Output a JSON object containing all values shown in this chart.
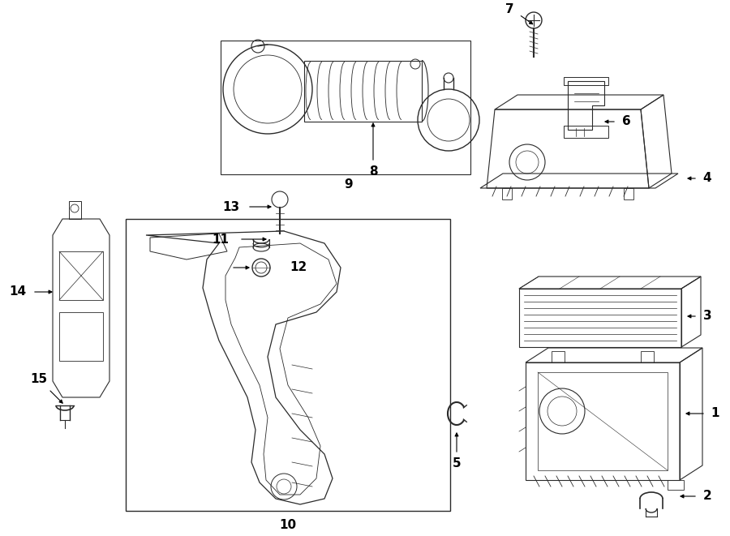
{
  "bg_color": "#ffffff",
  "line_color": "#2a2a2a",
  "fig_width": 9.0,
  "fig_height": 6.61,
  "dpi": 100
}
